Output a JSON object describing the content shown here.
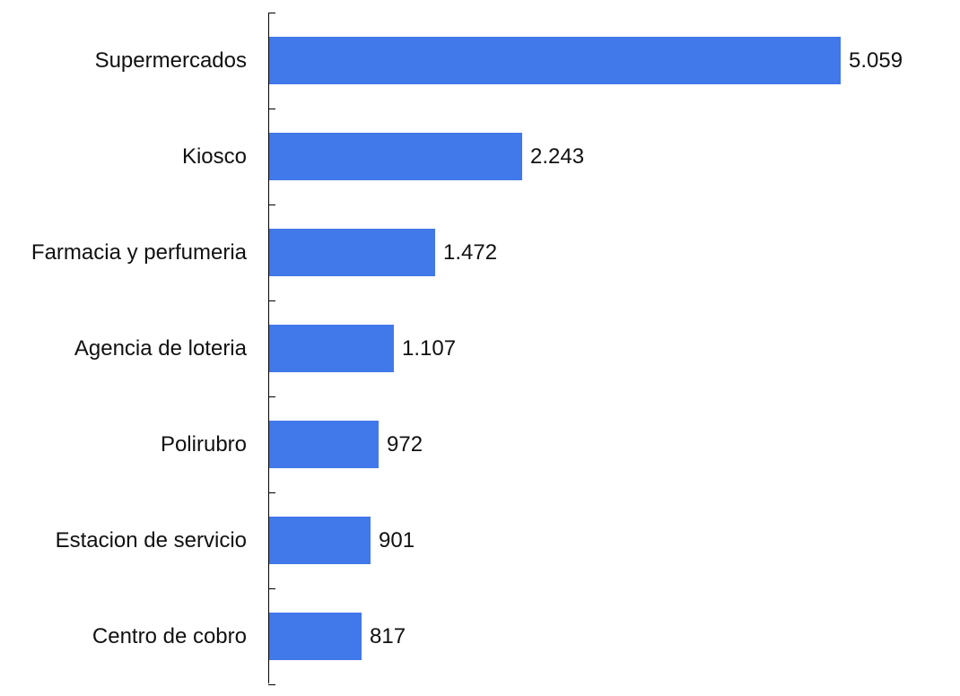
{
  "chart_data": {
    "type": "bar",
    "orientation": "horizontal",
    "title": "",
    "xlabel": "",
    "ylabel": "",
    "categories": [
      "Supermercados",
      "Kiosco",
      "Farmacia y perfumeria",
      "Agencia de loteria",
      "Polirubro",
      "Estacion de servicio",
      "Centro de cobro"
    ],
    "values": [
      5059,
      2243,
      1472,
      1107,
      972,
      901,
      817
    ],
    "value_labels": [
      "5.059",
      "2.243",
      "1.472",
      "1.107",
      "972",
      "901",
      "817"
    ],
    "bar_color": "#4178EA",
    "xlim": [
      0,
      5059
    ],
    "grid": false,
    "legend": null
  }
}
